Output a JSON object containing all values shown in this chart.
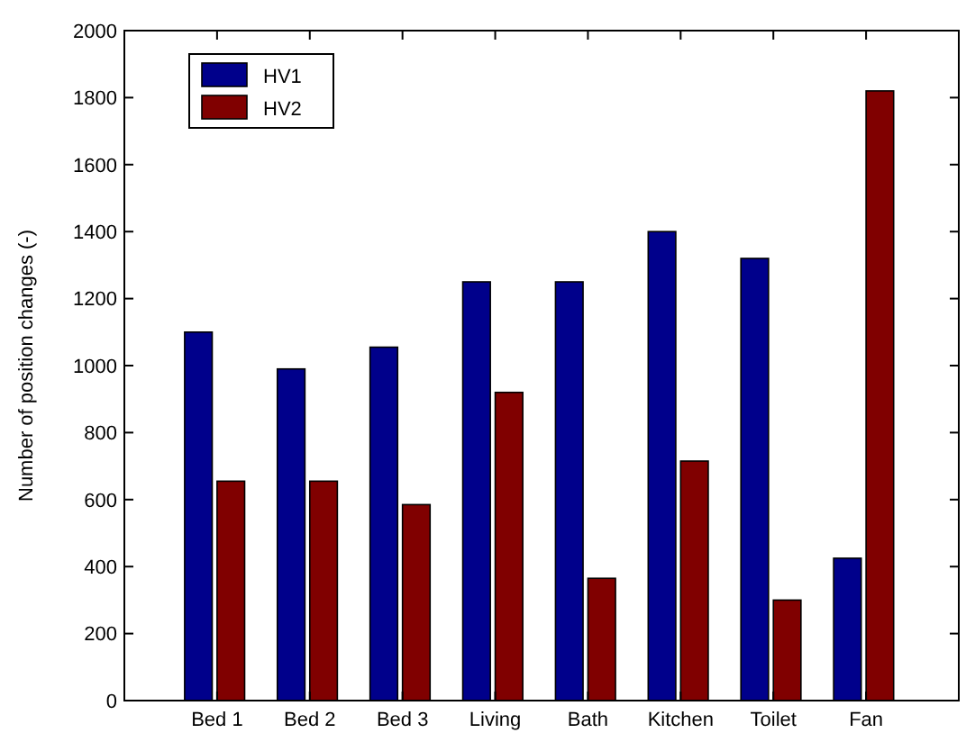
{
  "chart_data": {
    "type": "bar",
    "ylabel": "Number of position changes (-)",
    "categories": [
      "Bed 1",
      "Bed 2",
      "Bed 3",
      "Living",
      "Bath",
      "Kitchen",
      "Toilet",
      "Fan"
    ],
    "series": [
      {
        "name": "HV1",
        "color": "#00008b",
        "values": [
          1100,
          990,
          1055,
          1250,
          1250,
          1400,
          1320,
          425
        ]
      },
      {
        "name": "HV2",
        "color": "#800000",
        "values": [
          655,
          655,
          585,
          920,
          365,
          715,
          300,
          1820
        ]
      }
    ],
    "ylim": [
      0,
      2000
    ],
    "yticks": [
      0,
      200,
      400,
      600,
      800,
      1000,
      1200,
      1400,
      1600,
      1800,
      2000
    ],
    "grid": false,
    "legend": "top left"
  }
}
